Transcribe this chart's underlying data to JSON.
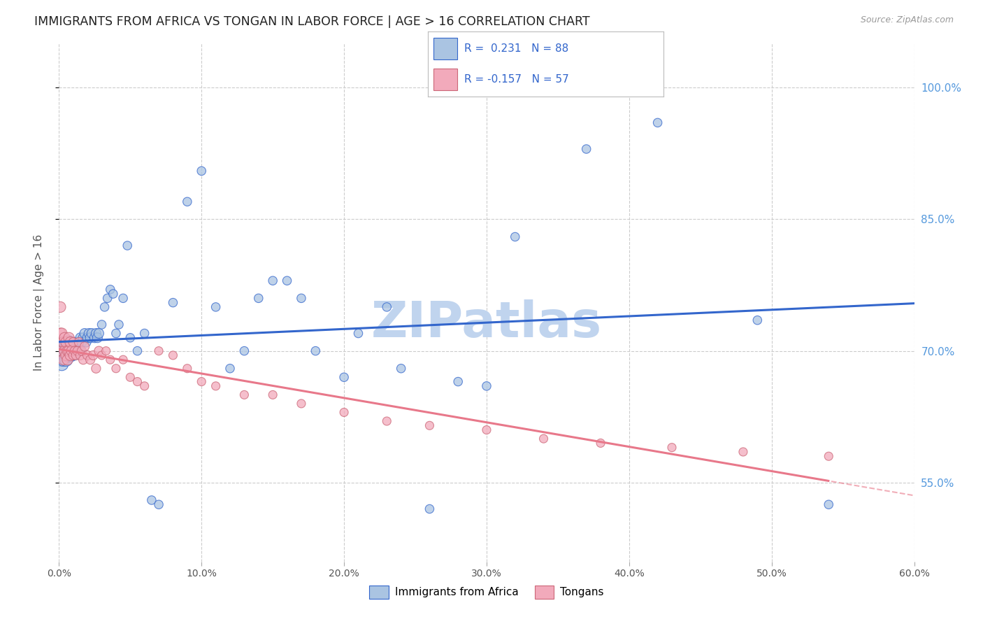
{
  "title": "IMMIGRANTS FROM AFRICA VS TONGAN IN LABOR FORCE | AGE > 16 CORRELATION CHART",
  "source": "Source: ZipAtlas.com",
  "ylabel": "In Labor Force | Age > 16",
  "xmin": 0.0,
  "xmax": 0.6,
  "ymin": 0.46,
  "ymax": 1.05,
  "africa_R": 0.231,
  "africa_N": 88,
  "tongan_R": -0.157,
  "tongan_N": 57,
  "africa_color": "#aac4e2",
  "tongan_color": "#f2aabb",
  "africa_line_color": "#3366cc",
  "tongan_line_color": "#e8788a",
  "background_color": "#ffffff",
  "grid_color": "#cccccc",
  "right_axis_color": "#5599dd",
  "legend_label1": "Immigrants from Africa",
  "legend_label2": "Tongans",
  "y_ticks": [
    0.55,
    0.7,
    0.85,
    1.0
  ],
  "y_tick_labels": [
    "55.0%",
    "70.0%",
    "85.0%",
    "100.0%"
  ],
  "x_ticks": [
    0.0,
    0.1,
    0.2,
    0.3,
    0.4,
    0.5,
    0.6
  ],
  "x_tick_labels": [
    "0.0%",
    "10.0%",
    "20.0%",
    "30.0%",
    "40.0%",
    "50.0%",
    "60.0%"
  ],
  "africa_x": [
    0.001,
    0.001,
    0.002,
    0.002,
    0.002,
    0.003,
    0.003,
    0.003,
    0.003,
    0.004,
    0.004,
    0.004,
    0.005,
    0.005,
    0.005,
    0.005,
    0.006,
    0.006,
    0.006,
    0.007,
    0.007,
    0.007,
    0.008,
    0.008,
    0.008,
    0.009,
    0.009,
    0.01,
    0.01,
    0.01,
    0.011,
    0.011,
    0.012,
    0.012,
    0.013,
    0.013,
    0.014,
    0.015,
    0.015,
    0.016,
    0.017,
    0.018,
    0.019,
    0.02,
    0.021,
    0.022,
    0.023,
    0.025,
    0.026,
    0.027,
    0.028,
    0.03,
    0.032,
    0.034,
    0.036,
    0.038,
    0.04,
    0.042,
    0.045,
    0.048,
    0.05,
    0.055,
    0.06,
    0.065,
    0.07,
    0.08,
    0.09,
    0.1,
    0.11,
    0.13,
    0.15,
    0.18,
    0.21,
    0.24,
    0.28,
    0.32,
    0.37,
    0.42,
    0.49,
    0.54,
    0.2,
    0.23,
    0.17,
    0.16,
    0.14,
    0.12,
    0.26,
    0.3
  ],
  "africa_y": [
    0.7,
    0.69,
    0.695,
    0.705,
    0.685,
    0.71,
    0.7,
    0.695,
    0.69,
    0.705,
    0.7,
    0.695,
    0.7,
    0.71,
    0.695,
    0.69,
    0.7,
    0.705,
    0.695,
    0.7,
    0.71,
    0.695,
    0.7,
    0.705,
    0.695,
    0.7,
    0.705,
    0.695,
    0.7,
    0.71,
    0.7,
    0.695,
    0.705,
    0.7,
    0.71,
    0.7,
    0.705,
    0.715,
    0.7,
    0.71,
    0.715,
    0.72,
    0.71,
    0.715,
    0.72,
    0.715,
    0.72,
    0.715,
    0.72,
    0.715,
    0.72,
    0.73,
    0.75,
    0.76,
    0.77,
    0.765,
    0.72,
    0.73,
    0.76,
    0.82,
    0.715,
    0.7,
    0.72,
    0.53,
    0.525,
    0.755,
    0.87,
    0.905,
    0.75,
    0.7,
    0.78,
    0.7,
    0.72,
    0.68,
    0.665,
    0.83,
    0.93,
    0.96,
    0.735,
    0.525,
    0.67,
    0.75,
    0.76,
    0.78,
    0.76,
    0.68,
    0.52,
    0.66
  ],
  "tongan_x": [
    0.001,
    0.001,
    0.002,
    0.002,
    0.003,
    0.003,
    0.004,
    0.004,
    0.005,
    0.005,
    0.006,
    0.006,
    0.007,
    0.007,
    0.008,
    0.008,
    0.009,
    0.01,
    0.01,
    0.011,
    0.012,
    0.013,
    0.014,
    0.015,
    0.016,
    0.017,
    0.018,
    0.02,
    0.022,
    0.024,
    0.026,
    0.028,
    0.03,
    0.033,
    0.036,
    0.04,
    0.045,
    0.05,
    0.055,
    0.06,
    0.07,
    0.08,
    0.09,
    0.1,
    0.11,
    0.13,
    0.15,
    0.17,
    0.2,
    0.23,
    0.26,
    0.3,
    0.34,
    0.38,
    0.43,
    0.48,
    0.54
  ],
  "tongan_y": [
    0.72,
    0.75,
    0.7,
    0.72,
    0.71,
    0.69,
    0.715,
    0.7,
    0.695,
    0.71,
    0.7,
    0.69,
    0.715,
    0.7,
    0.695,
    0.71,
    0.7,
    0.695,
    0.71,
    0.7,
    0.695,
    0.7,
    0.71,
    0.695,
    0.7,
    0.69,
    0.705,
    0.695,
    0.69,
    0.695,
    0.68,
    0.7,
    0.695,
    0.7,
    0.69,
    0.68,
    0.69,
    0.67,
    0.665,
    0.66,
    0.7,
    0.695,
    0.68,
    0.665,
    0.66,
    0.65,
    0.65,
    0.64,
    0.63,
    0.62,
    0.615,
    0.61,
    0.6,
    0.595,
    0.59,
    0.585,
    0.58
  ],
  "watermark": "ZIPatlas",
  "watermark_color": "#c0d4ee"
}
